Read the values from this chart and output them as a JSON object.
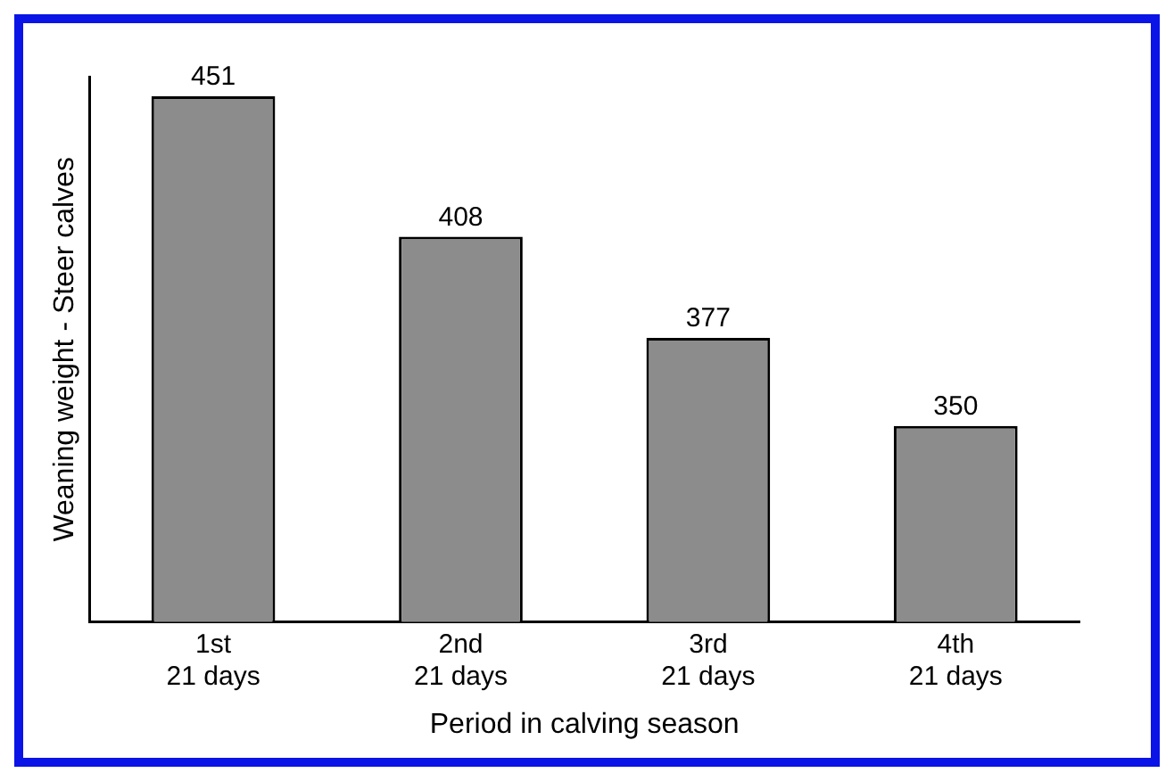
{
  "chart_data": {
    "type": "bar",
    "xlabel": "Period in calving season",
    "ylabel": "Weaning weight - Steer calves",
    "categories": [
      "1st\n21 days",
      "2nd\n21 days",
      "3rd\n21 days",
      "4th\n21 days"
    ],
    "values": [
      451,
      408,
      377,
      350
    ],
    "color": "#8c8c8c",
    "ylim": [
      290,
      457
    ],
    "data_labels": true,
    "grid": false,
    "legend": false
  }
}
